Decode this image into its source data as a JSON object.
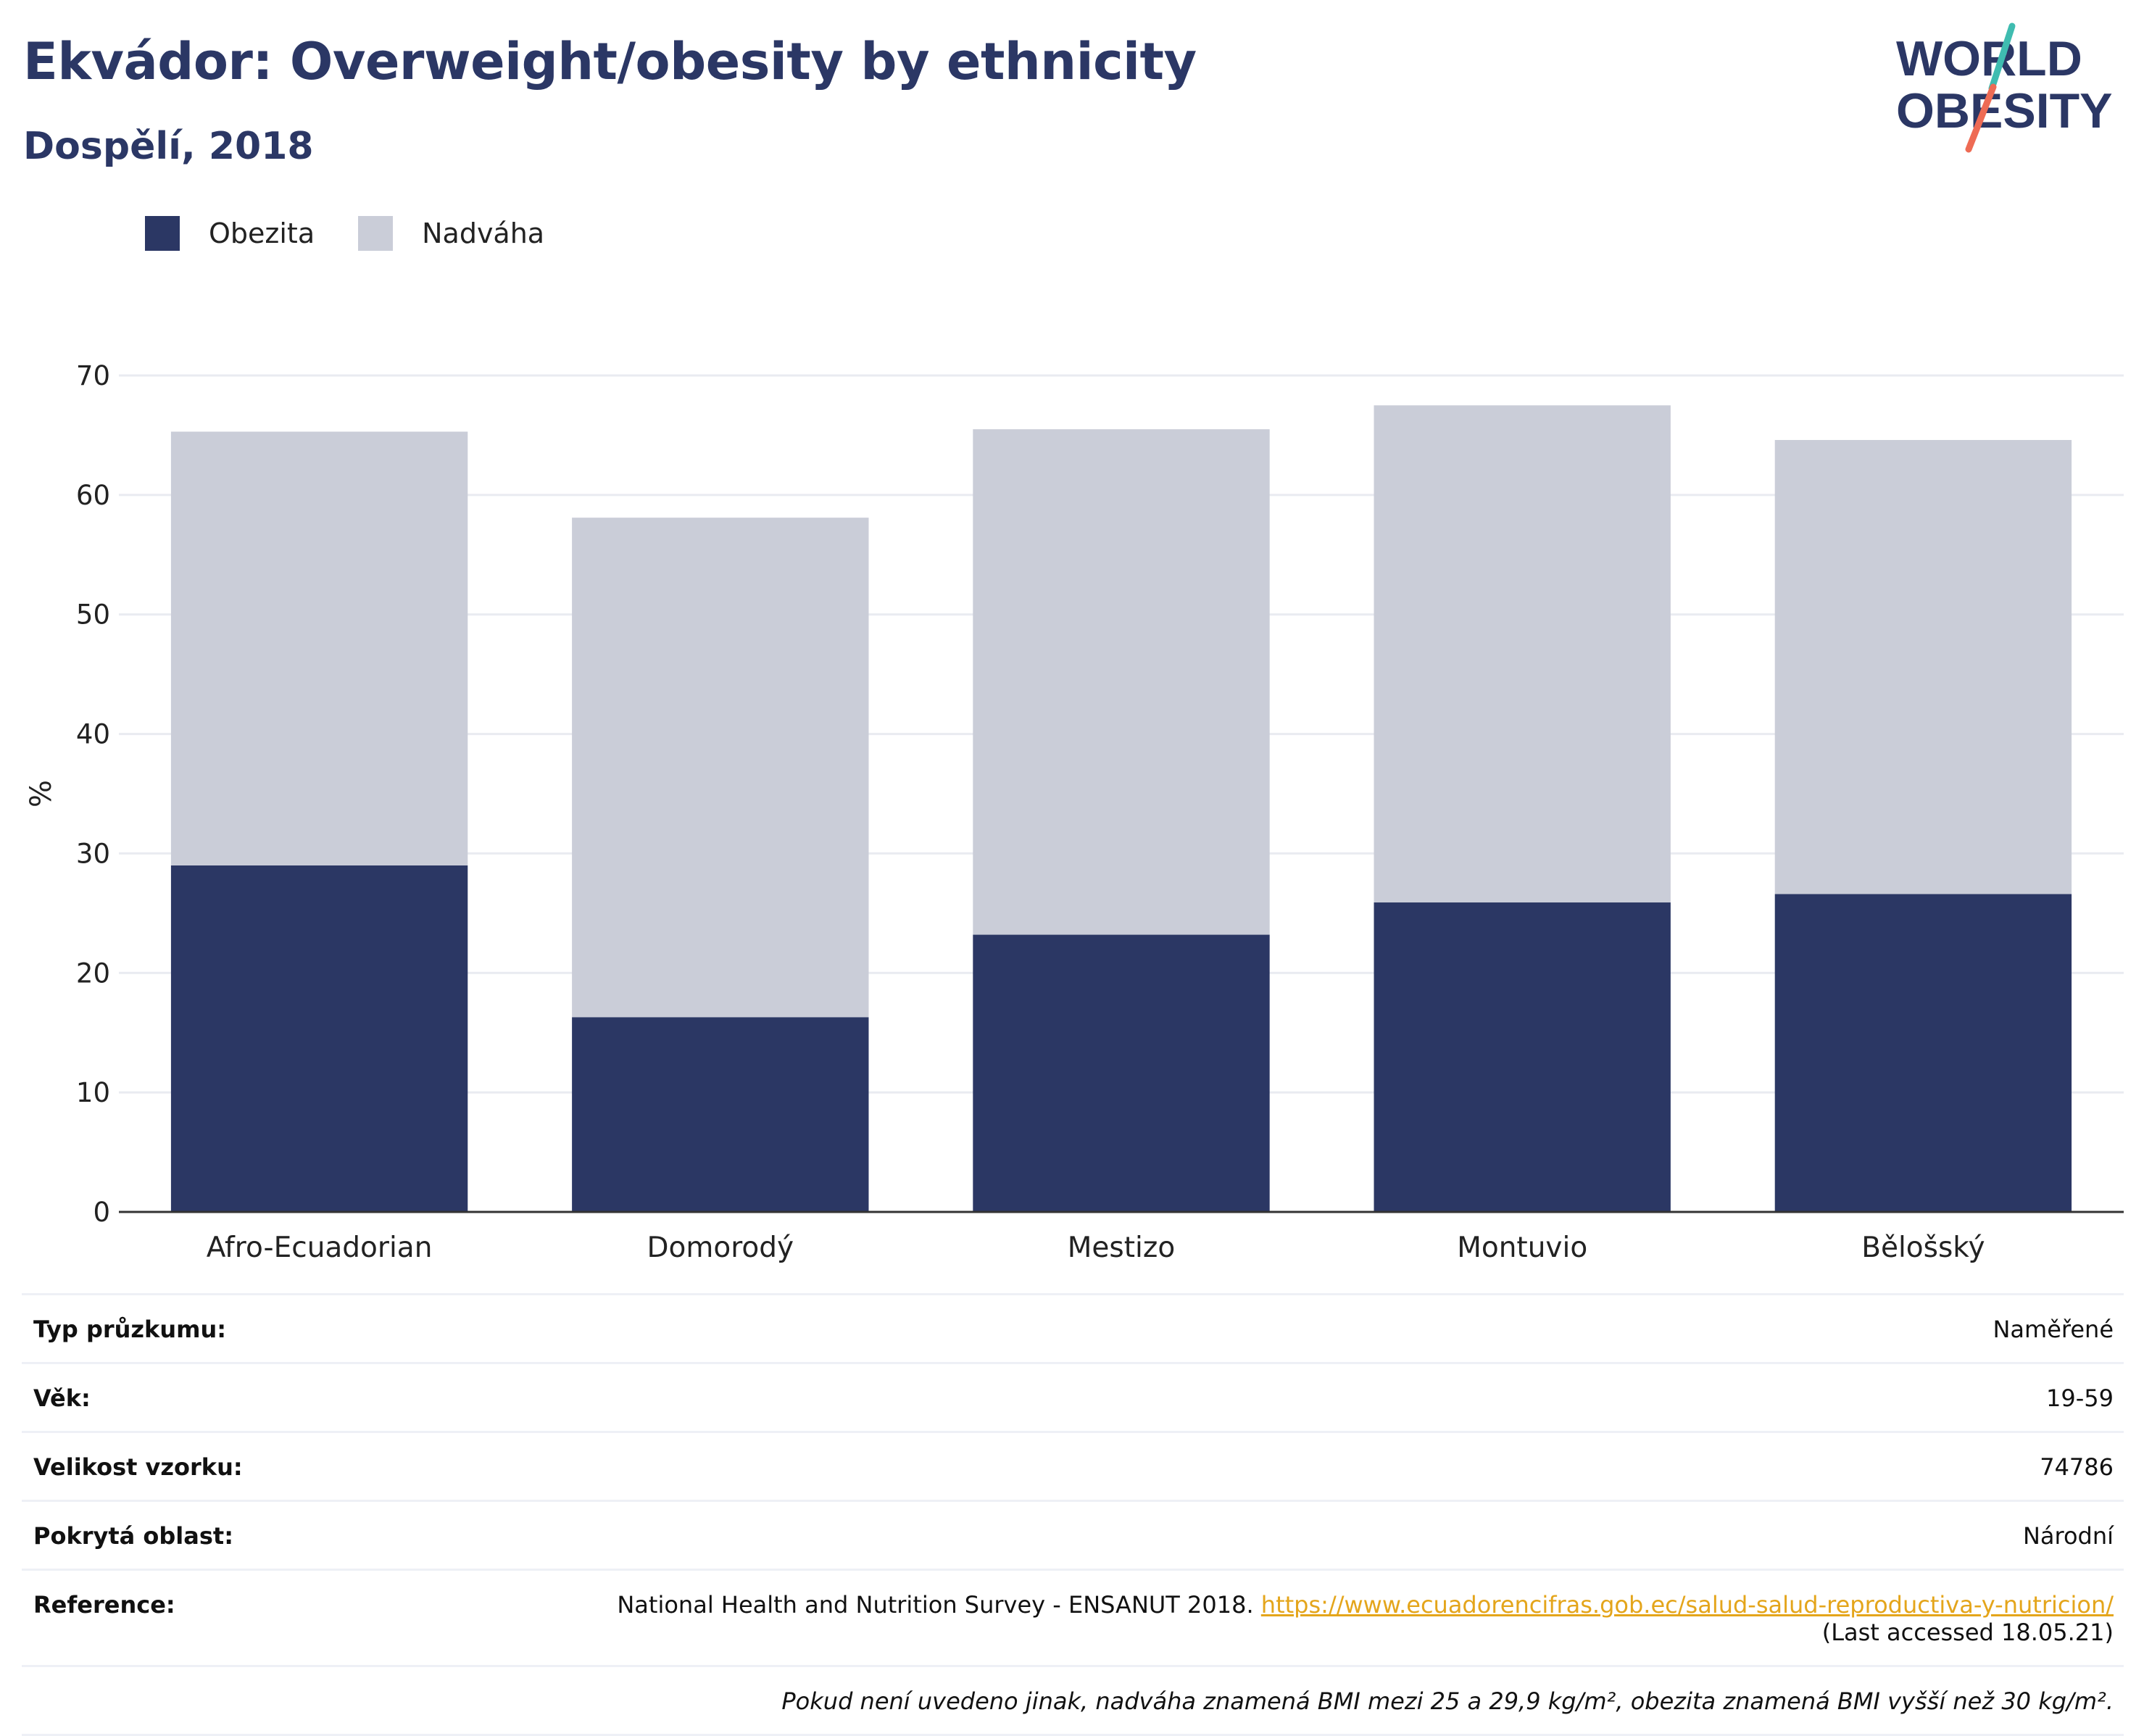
{
  "header": {
    "title": "Ekvádor: Overweight/obesity by ethnicity",
    "subtitle": "Dospělí, 2018"
  },
  "logo": {
    "line1": "WORLD",
    "line2": "OBESITY"
  },
  "colors": {
    "obesity": "#2b3764",
    "overweight": "#cacdd8",
    "title": "#2b3765",
    "logo_teal": "#3fbcb0",
    "logo_coral": "#ee6b54"
  },
  "chart_data": {
    "type": "bar",
    "stacked": true,
    "categories": [
      "Afro-Ecuadorian",
      "Domorodý",
      "Mestizo",
      "Montuvio",
      "Bělošský"
    ],
    "series": [
      {
        "name": "Obezita",
        "values": [
          29.0,
          16.3,
          23.2,
          25.9,
          26.6
        ]
      },
      {
        "name": "Nadváha",
        "values": [
          36.3,
          41.8,
          42.3,
          41.6,
          38.0
        ]
      }
    ],
    "totals": [
      65.3,
      58.1,
      65.5,
      67.5,
      64.6
    ],
    "ylabel": "%",
    "ylim": [
      0,
      70
    ],
    "yticks": [
      0,
      10,
      20,
      30,
      40,
      50,
      60,
      70
    ],
    "grid": true,
    "legend_position": "top-left"
  },
  "info": {
    "rows": [
      {
        "label": "Typ průzkumu:",
        "value": "Naměřené"
      },
      {
        "label": "Věk:",
        "value": "19-59"
      },
      {
        "label": "Velikost vzorku:",
        "value": "74786"
      },
      {
        "label": "Pokrytá oblast:",
        "value": "Národní"
      }
    ],
    "reference": {
      "label": "Reference:",
      "text": "National Health and Nutrition Survey - ENSANUT 2018.",
      "url": "https://www.ecuadorencifras.gob.ec/salud-salud-reproductiva-y-nutricion/",
      "accessed": "(Last accessed 18.05.21)"
    },
    "note": "Pokud není uvedeno jinak, nadváha znamená BMI mezi 25 a 29,9 kg/m², obezita znamená BMI vyšší než 30 kg/m²."
  }
}
